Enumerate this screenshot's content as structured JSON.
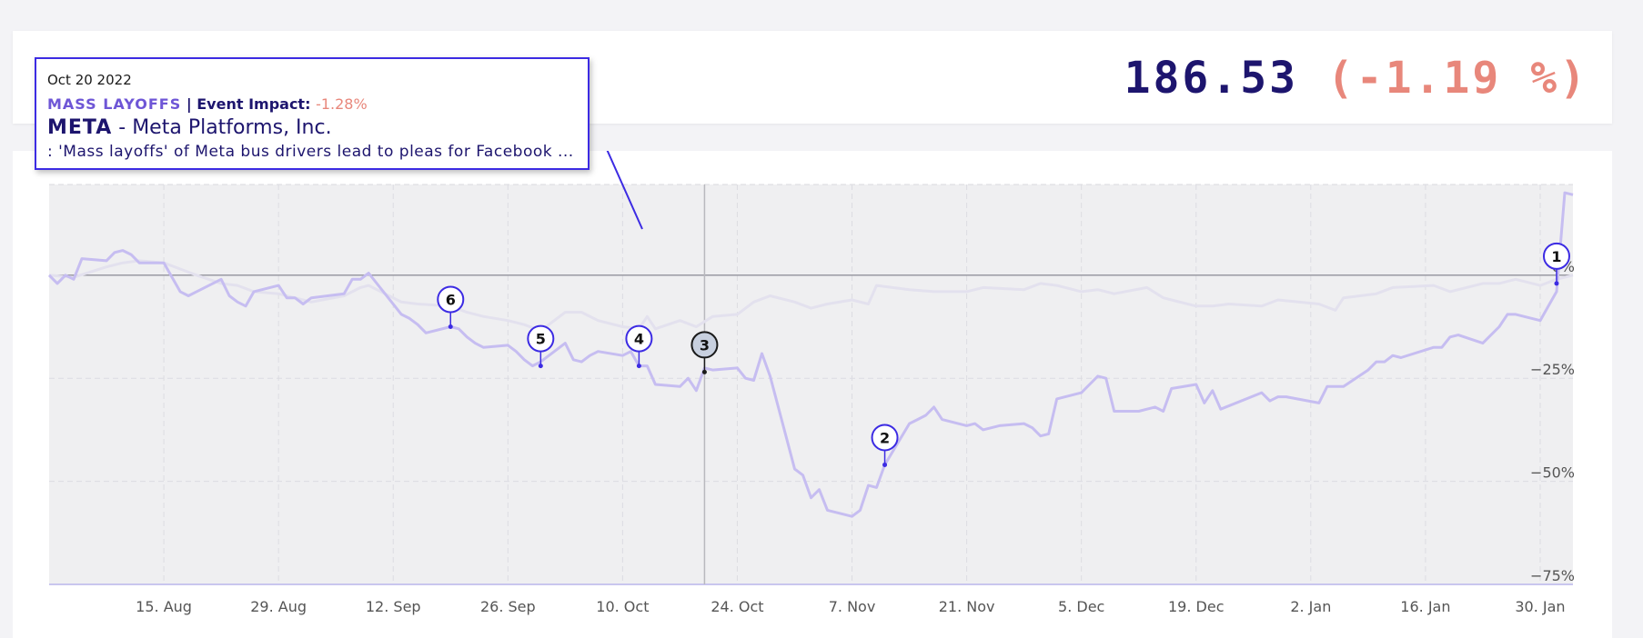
{
  "header": {
    "price": "186.53",
    "change": "(-1.19 %)"
  },
  "tooltip": {
    "date": "Oct 20 2022",
    "event_tag": "MASS LAYOFFS",
    "separator": "|",
    "impact_label": "Event Impact:",
    "impact_value": "-1.28%",
    "ticker": "META",
    "dash": "-",
    "company": "Meta Platforms, Inc.",
    "headline": ": 'Mass layoffs' of Meta bus drivers lead to pleas for Facebook ..."
  },
  "colors": {
    "accent": "#3c2be3",
    "price": "#1d156e",
    "negative": "#e8877b",
    "series_main": "#c6bdf1",
    "series_benchmark": "#e3e1ee",
    "plot_background": "#efeff1"
  },
  "chart_data": {
    "type": "line",
    "x_unit": "date",
    "xlim": [
      "2022-08-01",
      "2023-02-03"
    ],
    "ylim": [
      -75,
      22
    ],
    "y_ticks": [
      {
        "value": 0,
        "label": "0%"
      },
      {
        "value": -25,
        "label": "−25%"
      },
      {
        "value": -50,
        "label": "−50%"
      },
      {
        "value": -75,
        "label": "−75%"
      }
    ],
    "x_ticks": [
      {
        "date": "2022-08-15",
        "label": "15. Aug"
      },
      {
        "date": "2022-08-29",
        "label": "29. Aug"
      },
      {
        "date": "2022-09-12",
        "label": "12. Sep"
      },
      {
        "date": "2022-09-26",
        "label": "26. Sep"
      },
      {
        "date": "2022-10-10",
        "label": "10. Oct"
      },
      {
        "date": "2022-10-24",
        "label": "24. Oct"
      },
      {
        "date": "2022-11-07",
        "label": "7. Nov"
      },
      {
        "date": "2022-11-21",
        "label": "21. Nov"
      },
      {
        "date": "2022-12-05",
        "label": "5. Dec"
      },
      {
        "date": "2022-12-19",
        "label": "19. Dec"
      },
      {
        "date": "2023-01-02",
        "label": "2. Jan"
      },
      {
        "date": "2023-01-16",
        "label": "16. Jan"
      },
      {
        "date": "2023-01-30",
        "label": "30. Jan"
      }
    ],
    "grid": true,
    "crosshair_date": "2022-10-20",
    "series": [
      {
        "role": "main",
        "points": [
          [
            "2022-08-01",
            0
          ],
          [
            "2022-08-02",
            -2
          ],
          [
            "2022-08-03",
            0
          ],
          [
            "2022-08-04",
            -1
          ],
          [
            "2022-08-05",
            4
          ],
          [
            "2022-08-08",
            3.5
          ],
          [
            "2022-08-09",
            5.5
          ],
          [
            "2022-08-10",
            6
          ],
          [
            "2022-08-11",
            5
          ],
          [
            "2022-08-12",
            3
          ],
          [
            "2022-08-15",
            3
          ],
          [
            "2022-08-16",
            -0.5
          ],
          [
            "2022-08-17",
            -4
          ],
          [
            "2022-08-18",
            -5
          ],
          [
            "2022-08-19",
            -4
          ],
          [
            "2022-08-22",
            -1
          ],
          [
            "2022-08-23",
            -5
          ],
          [
            "2022-08-24",
            -6.5
          ],
          [
            "2022-08-25",
            -7.5
          ],
          [
            "2022-08-26",
            -4
          ],
          [
            "2022-08-29",
            -2.5
          ],
          [
            "2022-08-30",
            -5.5
          ],
          [
            "2022-08-31",
            -5.5
          ],
          [
            "2022-09-01",
            -7
          ],
          [
            "2022-09-02",
            -5.5
          ],
          [
            "2022-09-06",
            -4.5
          ],
          [
            "2022-09-07",
            -1
          ],
          [
            "2022-09-08",
            -1
          ],
          [
            "2022-09-09",
            0.5
          ],
          [
            "2022-09-13",
            -9.5
          ],
          [
            "2022-09-14",
            -10.5
          ],
          [
            "2022-09-15",
            -12
          ],
          [
            "2022-09-16",
            -14
          ],
          [
            "2022-09-19",
            -12.5
          ],
          [
            "2022-09-20",
            -13
          ],
          [
            "2022-09-21",
            -15
          ],
          [
            "2022-09-22",
            -16.5
          ],
          [
            "2022-09-23",
            -17.5
          ],
          [
            "2022-09-26",
            -17
          ],
          [
            "2022-09-27",
            -18.5
          ],
          [
            "2022-09-28",
            -20.5
          ],
          [
            "2022-09-29",
            -22
          ],
          [
            "2022-09-30",
            -21
          ],
          [
            "2022-10-03",
            -16.5
          ],
          [
            "2022-10-04",
            -20.5
          ],
          [
            "2022-10-05",
            -21
          ],
          [
            "2022-10-06",
            -19.5
          ],
          [
            "2022-10-07",
            -18.5
          ],
          [
            "2022-10-10",
            -19.5
          ],
          [
            "2022-10-11",
            -18.5
          ],
          [
            "2022-10-12",
            -22
          ],
          [
            "2022-10-13",
            -22
          ],
          [
            "2022-10-14",
            -26.5
          ],
          [
            "2022-10-17",
            -27
          ],
          [
            "2022-10-18",
            -25
          ],
          [
            "2022-10-19",
            -28
          ],
          [
            "2022-10-20",
            -22.5
          ],
          [
            "2022-10-21",
            -23
          ],
          [
            "2022-10-24",
            -22.5
          ],
          [
            "2022-10-25",
            -25
          ],
          [
            "2022-10-26",
            -25.5
          ],
          [
            "2022-10-27",
            -19
          ],
          [
            "2022-10-28",
            -24.5
          ],
          [
            "2022-10-31",
            -47
          ],
          [
            "2022-11-01",
            -48.5
          ],
          [
            "2022-11-02",
            -54
          ],
          [
            "2022-11-03",
            -52
          ],
          [
            "2022-11-04",
            -57
          ],
          [
            "2022-11-07",
            -58.5
          ],
          [
            "2022-11-08",
            -57
          ],
          [
            "2022-11-09",
            -51
          ],
          [
            "2022-11-10",
            -51.5
          ],
          [
            "2022-11-11",
            -46
          ],
          [
            "2022-11-14",
            -36
          ],
          [
            "2022-11-15",
            -35
          ],
          [
            "2022-11-16",
            -34
          ],
          [
            "2022-11-17",
            -32
          ],
          [
            "2022-11-18",
            -35
          ],
          [
            "2022-11-21",
            -36.5
          ],
          [
            "2022-11-22",
            -36
          ],
          [
            "2022-11-23",
            -37.5
          ],
          [
            "2022-11-25",
            -36.5
          ],
          [
            "2022-11-28",
            -36
          ],
          [
            "2022-11-29",
            -37
          ],
          [
            "2022-11-30",
            -39
          ],
          [
            "2022-12-01",
            -38.5
          ],
          [
            "2022-12-02",
            -30
          ],
          [
            "2022-12-05",
            -28.5
          ],
          [
            "2022-12-06",
            -26.5
          ],
          [
            "2022-12-07",
            -24.5
          ],
          [
            "2022-12-08",
            -25
          ],
          [
            "2022-12-09",
            -33
          ],
          [
            "2022-12-12",
            -33
          ],
          [
            "2022-12-13",
            -32.5
          ],
          [
            "2022-12-14",
            -32
          ],
          [
            "2022-12-15",
            -33
          ],
          [
            "2022-12-16",
            -27.5
          ],
          [
            "2022-12-19",
            -26.5
          ],
          [
            "2022-12-20",
            -31
          ],
          [
            "2022-12-21",
            -28
          ],
          [
            "2022-12-22",
            -32.5
          ],
          [
            "2022-12-27",
            -28.5
          ],
          [
            "2022-12-28",
            -30.5
          ],
          [
            "2022-12-29",
            -29.5
          ],
          [
            "2022-12-30",
            -29.5
          ],
          [
            "2023-01-03",
            -31
          ],
          [
            "2023-01-04",
            -27
          ],
          [
            "2023-01-05",
            -27
          ],
          [
            "2023-01-06",
            -27
          ],
          [
            "2023-01-09",
            -23
          ],
          [
            "2023-01-10",
            -21
          ],
          [
            "2023-01-11",
            -21
          ],
          [
            "2023-01-12",
            -19.5
          ],
          [
            "2023-01-13",
            -20
          ],
          [
            "2023-01-17",
            -17.5
          ],
          [
            "2023-01-18",
            -17.5
          ],
          [
            "2023-01-19",
            -15
          ],
          [
            "2023-01-20",
            -14.5
          ],
          [
            "2023-01-23",
            -16.5
          ],
          [
            "2023-01-24",
            -14.5
          ],
          [
            "2023-01-25",
            -12.5
          ],
          [
            "2023-01-26",
            -9.5
          ],
          [
            "2023-01-27",
            -9.5
          ],
          [
            "2023-01-30",
            -11
          ],
          [
            "2023-01-31",
            -7.5
          ],
          [
            "2023-02-01",
            -4
          ],
          [
            "2023-02-02",
            20
          ],
          [
            "2023-02-03",
            19.5
          ]
        ]
      },
      {
        "role": "benchmark",
        "points": [
          [
            "2022-08-01",
            0
          ],
          [
            "2022-08-04",
            -0.5
          ],
          [
            "2022-08-08",
            2
          ],
          [
            "2022-08-10",
            3
          ],
          [
            "2022-08-12",
            3.5
          ],
          [
            "2022-08-15",
            3
          ],
          [
            "2022-08-17",
            1.5
          ],
          [
            "2022-08-19",
            0
          ],
          [
            "2022-08-22",
            -2
          ],
          [
            "2022-08-24",
            -2.5
          ],
          [
            "2022-08-26",
            -4
          ],
          [
            "2022-08-29",
            -4.5
          ],
          [
            "2022-08-31",
            -5.5
          ],
          [
            "2022-09-02",
            -6.5
          ],
          [
            "2022-09-06",
            -5
          ],
          [
            "2022-09-08",
            -3
          ],
          [
            "2022-09-09",
            -2.5
          ],
          [
            "2022-09-13",
            -6.5
          ],
          [
            "2022-09-15",
            -7
          ],
          [
            "2022-09-19",
            -7.5
          ],
          [
            "2022-09-21",
            -9
          ],
          [
            "2022-09-23",
            -10
          ],
          [
            "2022-09-26",
            -11
          ],
          [
            "2022-09-28",
            -12
          ],
          [
            "2022-09-30",
            -13.5
          ],
          [
            "2022-10-03",
            -9
          ],
          [
            "2022-10-05",
            -9
          ],
          [
            "2022-10-07",
            -11
          ],
          [
            "2022-10-10",
            -12.5
          ],
          [
            "2022-10-12",
            -13
          ],
          [
            "2022-10-13",
            -10
          ],
          [
            "2022-10-14",
            -13
          ],
          [
            "2022-10-17",
            -11
          ],
          [
            "2022-10-19",
            -12.5
          ],
          [
            "2022-10-21",
            -10
          ],
          [
            "2022-10-24",
            -9.5
          ],
          [
            "2022-10-26",
            -6.5
          ],
          [
            "2022-10-28",
            -5
          ],
          [
            "2022-10-31",
            -6.5
          ],
          [
            "2022-11-02",
            -8
          ],
          [
            "2022-11-04",
            -7
          ],
          [
            "2022-11-07",
            -6
          ],
          [
            "2022-11-09",
            -7
          ],
          [
            "2022-11-10",
            -2.5
          ],
          [
            "2022-11-14",
            -3.5
          ],
          [
            "2022-11-17",
            -4
          ],
          [
            "2022-11-21",
            -4
          ],
          [
            "2022-11-23",
            -3
          ],
          [
            "2022-11-28",
            -3.5
          ],
          [
            "2022-11-30",
            -2
          ],
          [
            "2022-12-02",
            -2.5
          ],
          [
            "2022-12-05",
            -4
          ],
          [
            "2022-12-07",
            -3.5
          ],
          [
            "2022-12-09",
            -4.5
          ],
          [
            "2022-12-13",
            -3
          ],
          [
            "2022-12-15",
            -5.5
          ],
          [
            "2022-12-16",
            -6
          ],
          [
            "2022-12-19",
            -7.5
          ],
          [
            "2022-12-21",
            -7.5
          ],
          [
            "2022-12-23",
            -7
          ],
          [
            "2022-12-27",
            -7.5
          ],
          [
            "2022-12-29",
            -6
          ],
          [
            "2023-01-03",
            -7
          ],
          [
            "2023-01-05",
            -8.5
          ],
          [
            "2023-01-06",
            -5.5
          ],
          [
            "2023-01-10",
            -4.5
          ],
          [
            "2023-01-12",
            -3
          ],
          [
            "2023-01-17",
            -2.5
          ],
          [
            "2023-01-19",
            -4
          ],
          [
            "2023-01-23",
            -2
          ],
          [
            "2023-01-25",
            -2
          ],
          [
            "2023-01-27",
            -1
          ],
          [
            "2023-01-30",
            -2.5
          ],
          [
            "2023-02-01",
            -1
          ],
          [
            "2023-02-03",
            0
          ]
        ]
      }
    ],
    "events": [
      {
        "label": "1",
        "date": "2023-02-01",
        "value": -2,
        "active": false
      },
      {
        "label": "2",
        "date": "2022-11-11",
        "value": -46,
        "active": false
      },
      {
        "label": "3",
        "date": "2022-10-20",
        "value": -23.5,
        "active": true
      },
      {
        "label": "4",
        "date": "2022-10-12",
        "value": -22,
        "active": false
      },
      {
        "label": "5",
        "date": "2022-09-30",
        "value": -22,
        "active": false
      },
      {
        "label": "6",
        "date": "2022-09-19",
        "value": -12.5,
        "active": false
      }
    ]
  }
}
